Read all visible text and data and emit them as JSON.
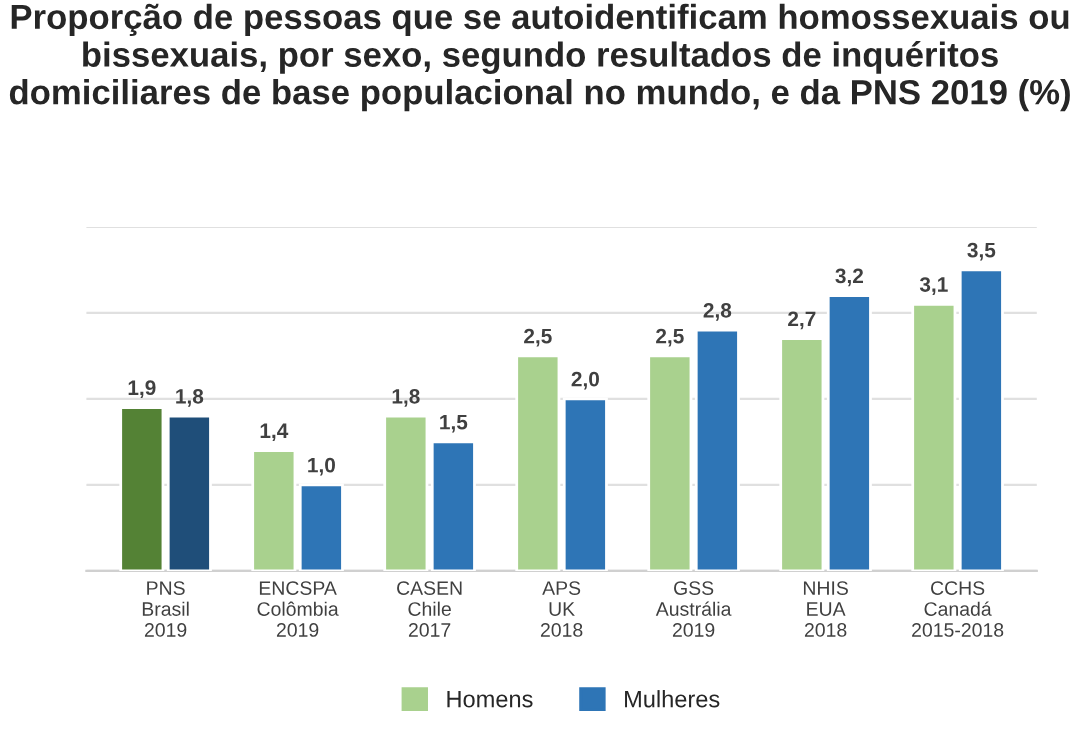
{
  "chart_data": {
    "type": "bar",
    "title": "Proporção de pessoas que se autoidentificam homossexuais ou bissexuais, por sexo, segundo resultados de inquéritos domiciliares de base populacional no mundo, e da PNS 2019 (%)",
    "categories": [
      "PNS\nBrasil\n2019",
      "ENCSPA\nColômbia\n2019",
      "CASEN\nChile\n2017",
      "APS\nUK\n2018",
      "GSS\nAustrália\n2019",
      "NHIS\nEUA\n2018",
      "CCHS\nCanadá\n2015-2018"
    ],
    "series": [
      {
        "name": "Homens",
        "color": "#a9d18e",
        "colors": [
          "#548235",
          "#a9d18e",
          "#a9d18e",
          "#a9d18e",
          "#a9d18e",
          "#a9d18e",
          "#a9d18e"
        ],
        "values": [
          1.9,
          1.4,
          1.8,
          2.5,
          2.5,
          2.7,
          3.1
        ],
        "value_labels": [
          "1,9",
          "1,4",
          "1,8",
          "2,5",
          "2,5",
          "2,7",
          "3,1"
        ]
      },
      {
        "name": "Mulheres",
        "color": "#2e75b6",
        "colors": [
          "#1f4e79",
          "#2e75b6",
          "#2e75b6",
          "#2e75b6",
          "#2e75b6",
          "#2e75b6",
          "#2e75b6"
        ],
        "values": [
          1.8,
          1.0,
          1.5,
          2.0,
          2.8,
          3.2,
          3.5
        ],
        "value_labels": [
          "1,8",
          "1,0",
          "1,5",
          "2,0",
          "2,8",
          "3,2",
          "3,5"
        ]
      }
    ],
    "ylim": [
      0,
      4
    ],
    "yticks": [
      {
        "value": 0,
        "label": null
      },
      {
        "value": 1,
        "label": null
      },
      {
        "value": 2,
        "label": null
      },
      {
        "value": 3,
        "label": null
      },
      {
        "value": 4,
        "label": null
      }
    ],
    "tick_labels": "x",
    "grid": "y",
    "legend": "bottom"
  }
}
